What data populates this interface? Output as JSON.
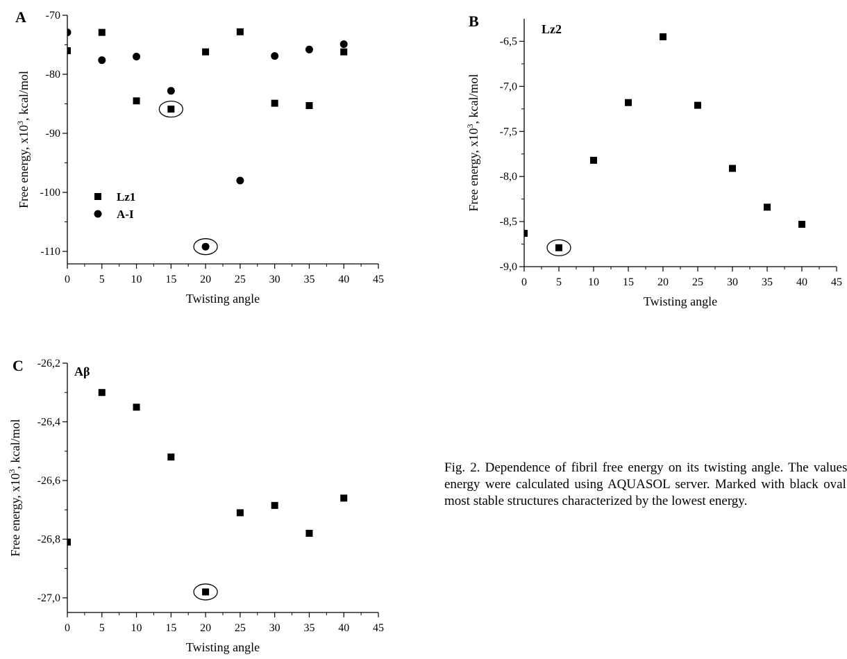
{
  "chart_data": [
    {
      "panel": "A",
      "type": "scatter",
      "title": "",
      "inner_label": "",
      "xlabel": "Twisting angle",
      "ylabel": "Free energy, x10",
      "ylabel_sup": "3",
      "ylabel_tail": ", kcal/mol",
      "xlim": [
        0,
        45
      ],
      "ylim": [
        -113,
        -70
      ],
      "x_ticks": [
        "0",
        "5",
        "10",
        "15",
        "20",
        "25",
        "30",
        "35",
        "40",
        "45"
      ],
      "y_ticks": [
        "-70",
        "-80",
        "-90",
        "-100",
        "-110"
      ],
      "legend_position": "lower-left",
      "series": [
        {
          "name": "Lz1",
          "marker": "square",
          "x": [
            0,
            5,
            10,
            15,
            20,
            25,
            30,
            35,
            40
          ],
          "y": [
            -76.0,
            -72.9,
            -84.5,
            -85.9,
            -76.2,
            -72.8,
            -84.9,
            -85.3,
            -76.2
          ]
        },
        {
          "name": "A-I",
          "marker": "circle",
          "x": [
            0,
            5,
            10,
            15,
            20,
            25,
            30,
            35,
            40
          ],
          "y": [
            -72.9,
            -77.6,
            -77.0,
            -82.8,
            -109.2,
            -98.0,
            -76.9,
            -75.8,
            -74.9
          ]
        }
      ],
      "highlighted": [
        {
          "series": "Lz1",
          "x": 15
        },
        {
          "series": "A-I",
          "x": 20
        }
      ]
    },
    {
      "panel": "B",
      "type": "scatter",
      "title": "",
      "inner_label": "Lz2",
      "xlabel": "Twisting angle",
      "ylabel": "Free energy, x10",
      "ylabel_sup": "3",
      "ylabel_tail": ", kcal/mol",
      "xlim": [
        0,
        45
      ],
      "ylim": [
        -9.0,
        -6.25
      ],
      "x_ticks": [
        "0",
        "5",
        "10",
        "15",
        "20",
        "25",
        "30",
        "35",
        "40",
        "45"
      ],
      "y_ticks": [
        "-6,5",
        "-7,0",
        "-7,5",
        "-8,0",
        "-8,5",
        "-9,0"
      ],
      "series": [
        {
          "marker": "square",
          "x": [
            0,
            5,
            10,
            15,
            20,
            25,
            30,
            35,
            40
          ],
          "y": [
            -8.63,
            -8.79,
            -7.82,
            -7.18,
            -6.45,
            -7.21,
            -7.91,
            -8.34,
            -8.53
          ]
        }
      ],
      "highlighted": [
        {
          "series": 0,
          "x": 5
        }
      ]
    },
    {
      "panel": "C",
      "type": "scatter",
      "title": "",
      "inner_label": "Aβ",
      "xlabel": "Twisting angle",
      "ylabel": "Free energy, x10",
      "ylabel_sup": "3",
      "ylabel_tail": ", kcal/mol",
      "xlim": [
        0,
        45
      ],
      "ylim": [
        -27.05,
        -26.2
      ],
      "x_ticks": [
        "0",
        "5",
        "10",
        "15",
        "20",
        "25",
        "30",
        "35",
        "40",
        "45"
      ],
      "y_ticks": [
        "-26,2",
        "-26,4",
        "-26,6",
        "-26,8",
        "-27,0"
      ],
      "series": [
        {
          "marker": "square",
          "x": [
            0,
            5,
            10,
            15,
            20,
            25,
            30,
            35,
            40
          ],
          "y": [
            -26.81,
            -26.3,
            -26.35,
            -26.52,
            -26.98,
            -26.71,
            -26.685,
            -26.78,
            -26.66
          ]
        }
      ],
      "highlighted": [
        {
          "series": 0,
          "x": 20
        }
      ]
    }
  ],
  "caption": "Fig. 2. Dependence of fibril free energy on its twisting angle. The values of free energy were calculated using AQUASOL server. Marked with black oval are the most stable structures characterized by the lowest energy."
}
